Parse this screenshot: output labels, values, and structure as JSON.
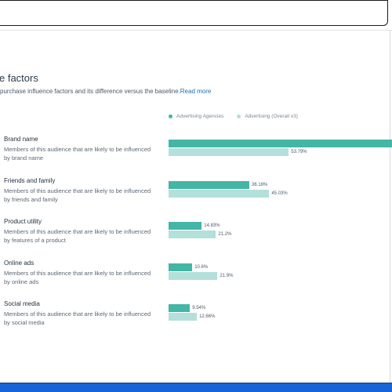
{
  "page": {
    "title": "e factors",
    "subtitle": "purchase influence factors and its difference versus the baseline.",
    "read_more": "Read more"
  },
  "legend": [
    {
      "label": "Advertising Agencies",
      "color": "#43b6a5"
    },
    {
      "label": "Advertising (Overall v3)",
      "color": "#b3e0da"
    }
  ],
  "colors": {
    "primary": "#43b6a5",
    "baseline": "#b3e0da",
    "accent_bar": "#1565d8"
  },
  "factors": [
    {
      "name": "Brand name",
      "description": "Members of this audience that are likely to be influenced by brand name",
      "primary_value": 100,
      "primary_label": "",
      "baseline_value": 53.79,
      "baseline_label": "53.79%"
    },
    {
      "name": "Friends and family",
      "description": "Members of this audience that are likely to be influenced by friends and family",
      "primary_value": 36.16,
      "primary_label": "36.16%",
      "baseline_value": 45.03,
      "baseline_label": "45.03%"
    },
    {
      "name": "Product utility",
      "description": "Members of this audience that are likely to be influenced by features of a product",
      "primary_value": 14.83,
      "primary_label": "14.83%",
      "baseline_value": 21.2,
      "baseline_label": "21.2%"
    },
    {
      "name": "Online ads",
      "description": "Members of this audience that are likely to be influenced by online ads",
      "primary_value": 10.6,
      "primary_label": "10.6%",
      "baseline_value": 21.9,
      "baseline_label": "21.9%"
    },
    {
      "name": "Social media",
      "description": "Members of this audience that are likely to be influenced by social media",
      "primary_value": 9.54,
      "primary_label": "9.54%",
      "baseline_value": 12.66,
      "baseline_label": "12.66%"
    }
  ]
}
